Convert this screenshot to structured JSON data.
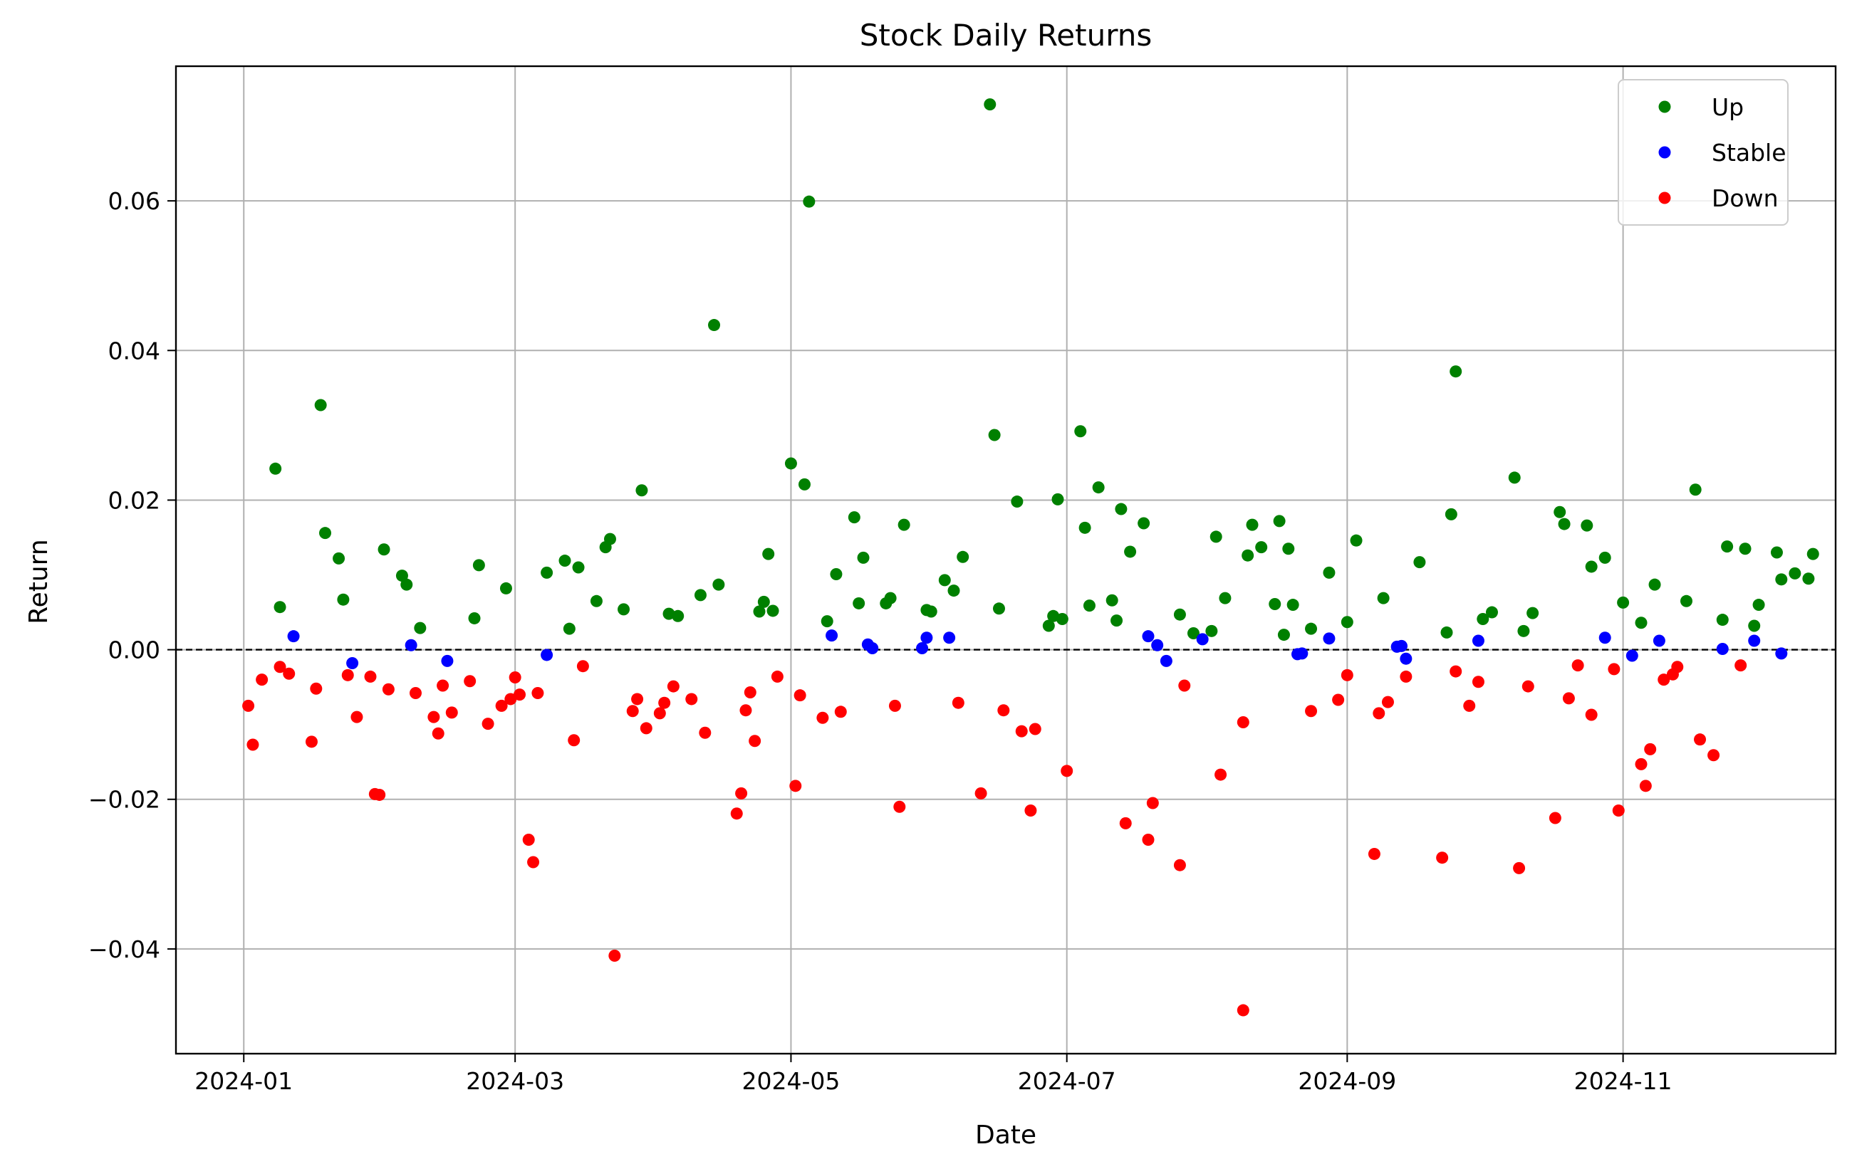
{
  "chart_data": {
    "type": "scatter",
    "title": "Stock Daily Returns",
    "xlabel": "Date",
    "ylabel": "Return",
    "x_axis_type": "date",
    "xlim": [
      "2023-12-17",
      "2024-12-18"
    ],
    "ylim": [
      -0.054,
      0.078
    ],
    "x_ticks": [
      "2024-01-01",
      "2024-03-01",
      "2024-05-01",
      "2024-07-01",
      "2024-09-01",
      "2024-11-01"
    ],
    "x_tick_labels": [
      "2024-01",
      "2024-03",
      "2024-05",
      "2024-07",
      "2024-09",
      "2024-11"
    ],
    "y_ticks": [
      -0.04,
      -0.02,
      0.0,
      0.02,
      0.04,
      0.06
    ],
    "y_tick_labels": [
      "−0.04",
      "−0.02",
      "0.00",
      "0.02",
      "0.04",
      "0.06"
    ],
    "grid": true,
    "reference_line": {
      "y": 0.0,
      "style": "dashed",
      "color": "#000000"
    },
    "legend": {
      "position": "top-right",
      "entries": [
        "Up",
        "Stable",
        "Down"
      ]
    },
    "series": [
      {
        "name": "Up",
        "color": "#008000",
        "points": [
          [
            "2024-01-08",
            0.0242
          ],
          [
            "2024-01-09",
            0.0057
          ],
          [
            "2024-01-18",
            0.0327
          ],
          [
            "2024-01-19",
            0.0156
          ],
          [
            "2024-01-22",
            0.0122
          ],
          [
            "2024-01-23",
            0.0067
          ],
          [
            "2024-02-01",
            0.0134
          ],
          [
            "2024-02-05",
            0.0099
          ],
          [
            "2024-02-06",
            0.0087
          ],
          [
            "2024-02-09",
            0.0029
          ],
          [
            "2024-02-21",
            0.0042
          ],
          [
            "2024-02-22",
            0.0113
          ],
          [
            "2024-02-28",
            0.0082
          ],
          [
            "2024-03-08",
            0.0103
          ],
          [
            "2024-03-12",
            0.0119
          ],
          [
            "2024-03-13",
            0.0028
          ],
          [
            "2024-03-15",
            0.011
          ],
          [
            "2024-03-19",
            0.0065
          ],
          [
            "2024-03-21",
            0.0137
          ],
          [
            "2024-03-22",
            0.0148
          ],
          [
            "2024-03-25",
            0.0054
          ],
          [
            "2024-03-29",
            0.0213
          ],
          [
            "2024-04-04",
            0.0048
          ],
          [
            "2024-04-06",
            0.0045
          ],
          [
            "2024-04-11",
            0.0073
          ],
          [
            "2024-04-14",
            0.0434
          ],
          [
            "2024-04-15",
            0.0087
          ],
          [
            "2024-04-24",
            0.0051
          ],
          [
            "2024-04-25",
            0.0064
          ],
          [
            "2024-04-26",
            0.0128
          ],
          [
            "2024-04-27",
            0.0052
          ],
          [
            "2024-05-01",
            0.0249
          ],
          [
            "2024-05-04",
            0.0221
          ],
          [
            "2024-05-05",
            0.0599
          ],
          [
            "2024-05-09",
            0.0038
          ],
          [
            "2024-05-11",
            0.0101
          ],
          [
            "2024-05-15",
            0.0177
          ],
          [
            "2024-05-16",
            0.0062
          ],
          [
            "2024-05-17",
            0.0123
          ],
          [
            "2024-05-22",
            0.0062
          ],
          [
            "2024-05-23",
            0.0069
          ],
          [
            "2024-05-26",
            0.0167
          ],
          [
            "2024-05-31",
            0.0053
          ],
          [
            "2024-06-01",
            0.0051
          ],
          [
            "2024-06-04",
            0.0093
          ],
          [
            "2024-06-06",
            0.0079
          ],
          [
            "2024-06-08",
            0.0124
          ],
          [
            "2024-06-14",
            0.0729
          ],
          [
            "2024-06-15",
            0.0287
          ],
          [
            "2024-06-16",
            0.0055
          ],
          [
            "2024-06-20",
            0.0198
          ],
          [
            "2024-06-27",
            0.0032
          ],
          [
            "2024-06-28",
            0.0045
          ],
          [
            "2024-06-29",
            0.0201
          ],
          [
            "2024-06-30",
            0.0041
          ],
          [
            "2024-07-04",
            0.0292
          ],
          [
            "2024-07-05",
            0.0163
          ],
          [
            "2024-07-06",
            0.0059
          ],
          [
            "2024-07-08",
            0.0217
          ],
          [
            "2024-07-11",
            0.0066
          ],
          [
            "2024-07-12",
            0.0039
          ],
          [
            "2024-07-13",
            0.0188
          ],
          [
            "2024-07-15",
            0.0131
          ],
          [
            "2024-07-18",
            0.0169
          ],
          [
            "2024-07-26",
            0.0047
          ],
          [
            "2024-07-29",
            0.0022
          ],
          [
            "2024-08-02",
            0.0025
          ],
          [
            "2024-08-03",
            0.0151
          ],
          [
            "2024-08-05",
            0.0069
          ],
          [
            "2024-08-10",
            0.0126
          ],
          [
            "2024-08-11",
            0.0167
          ],
          [
            "2024-08-13",
            0.0137
          ],
          [
            "2024-08-16",
            0.0061
          ],
          [
            "2024-08-17",
            0.0172
          ],
          [
            "2024-08-18",
            0.002
          ],
          [
            "2024-08-19",
            0.0135
          ],
          [
            "2024-08-20",
            0.006
          ],
          [
            "2024-08-24",
            0.0028
          ],
          [
            "2024-08-28",
            0.0103
          ],
          [
            "2024-09-01",
            0.0037
          ],
          [
            "2024-09-03",
            0.0146
          ],
          [
            "2024-09-09",
            0.0069
          ],
          [
            "2024-09-17",
            0.0117
          ],
          [
            "2024-09-23",
            0.0023
          ],
          [
            "2024-09-24",
            0.0181
          ],
          [
            "2024-09-25",
            0.0372
          ],
          [
            "2024-10-01",
            0.0041
          ],
          [
            "2024-10-03",
            0.005
          ],
          [
            "2024-10-08",
            0.023
          ],
          [
            "2024-10-10",
            0.0025
          ],
          [
            "2024-10-12",
            0.0049
          ],
          [
            "2024-10-18",
            0.0184
          ],
          [
            "2024-10-19",
            0.0168
          ],
          [
            "2024-10-24",
            0.0166
          ],
          [
            "2024-10-25",
            0.0111
          ],
          [
            "2024-10-28",
            0.0123
          ],
          [
            "2024-11-01",
            0.0063
          ],
          [
            "2024-11-05",
            0.0036
          ],
          [
            "2024-11-08",
            0.0087
          ],
          [
            "2024-11-15",
            0.0065
          ],
          [
            "2024-11-17",
            0.0214
          ],
          [
            "2024-11-23",
            0.004
          ],
          [
            "2024-11-24",
            0.0138
          ],
          [
            "2024-11-28",
            0.0135
          ],
          [
            "2024-11-30",
            0.0032
          ],
          [
            "2024-12-01",
            0.006
          ],
          [
            "2024-12-05",
            0.013
          ],
          [
            "2024-12-06",
            0.0094
          ],
          [
            "2024-12-09",
            0.0102
          ],
          [
            "2024-12-12",
            0.0095
          ],
          [
            "2024-12-13",
            0.0128
          ]
        ]
      },
      {
        "name": "Stable",
        "color": "#0000ff",
        "points": [
          [
            "2024-01-12",
            0.0018
          ],
          [
            "2024-01-25",
            -0.0018
          ],
          [
            "2024-02-07",
            0.0006
          ],
          [
            "2024-02-15",
            -0.0015
          ],
          [
            "2024-03-08",
            -0.0007
          ],
          [
            "2024-05-10",
            0.0019
          ],
          [
            "2024-05-18",
            0.0007
          ],
          [
            "2024-05-19",
            0.0002
          ],
          [
            "2024-05-30",
            0.0002
          ],
          [
            "2024-05-31",
            0.0016
          ],
          [
            "2024-06-05",
            0.0016
          ],
          [
            "2024-07-19",
            0.0018
          ],
          [
            "2024-07-21",
            0.0006
          ],
          [
            "2024-07-23",
            -0.0015
          ],
          [
            "2024-07-31",
            0.0014
          ],
          [
            "2024-08-21",
            -0.0006
          ],
          [
            "2024-08-22",
            -0.0005
          ],
          [
            "2024-08-28",
            0.0015
          ],
          [
            "2024-09-12",
            0.0004
          ],
          [
            "2024-09-13",
            0.0005
          ],
          [
            "2024-09-14",
            -0.0012
          ],
          [
            "2024-09-30",
            0.0012
          ],
          [
            "2024-10-28",
            0.0016
          ],
          [
            "2024-11-03",
            -0.0008
          ],
          [
            "2024-11-09",
            0.0012
          ],
          [
            "2024-11-23",
            0.0001
          ],
          [
            "2024-11-30",
            0.0012
          ],
          [
            "2024-12-06",
            -0.0005
          ]
        ]
      },
      {
        "name": "Down",
        "color": "#ff0000",
        "points": [
          [
            "2024-01-02",
            -0.0075
          ],
          [
            "2024-01-03",
            -0.0127
          ],
          [
            "2024-01-05",
            -0.004
          ],
          [
            "2024-01-09",
            -0.0023
          ],
          [
            "2024-01-11",
            -0.0032
          ],
          [
            "2024-01-16",
            -0.0123
          ],
          [
            "2024-01-17",
            -0.0052
          ],
          [
            "2024-01-24",
            -0.0034
          ],
          [
            "2024-01-26",
            -0.009
          ],
          [
            "2024-01-29",
            -0.0036
          ],
          [
            "2024-01-30",
            -0.0193
          ],
          [
            "2024-01-31",
            -0.0194
          ],
          [
            "2024-02-02",
            -0.0053
          ],
          [
            "2024-02-08",
            -0.0058
          ],
          [
            "2024-02-12",
            -0.009
          ],
          [
            "2024-02-13",
            -0.0112
          ],
          [
            "2024-02-14",
            -0.0048
          ],
          [
            "2024-02-16",
            -0.0084
          ],
          [
            "2024-02-20",
            -0.0042
          ],
          [
            "2024-02-24",
            -0.0099
          ],
          [
            "2024-02-27",
            -0.0075
          ],
          [
            "2024-02-29",
            -0.0066
          ],
          [
            "2024-03-01",
            -0.0037
          ],
          [
            "2024-03-02",
            -0.006
          ],
          [
            "2024-03-04",
            -0.0254
          ],
          [
            "2024-03-05",
            -0.0284
          ],
          [
            "2024-03-06",
            -0.0058
          ],
          [
            "2024-03-14",
            -0.0121
          ],
          [
            "2024-03-16",
            -0.0022
          ],
          [
            "2024-03-23",
            -0.0409
          ],
          [
            "2024-03-27",
            -0.0082
          ],
          [
            "2024-03-28",
            -0.0066
          ],
          [
            "2024-03-30",
            -0.0105
          ],
          [
            "2024-04-02",
            -0.0085
          ],
          [
            "2024-04-03",
            -0.0071
          ],
          [
            "2024-04-05",
            -0.0049
          ],
          [
            "2024-04-09",
            -0.0066
          ],
          [
            "2024-04-12",
            -0.0111
          ],
          [
            "2024-04-19",
            -0.0219
          ],
          [
            "2024-04-20",
            -0.0192
          ],
          [
            "2024-04-21",
            -0.0081
          ],
          [
            "2024-04-22",
            -0.0057
          ],
          [
            "2024-04-23",
            -0.0122
          ],
          [
            "2024-04-28",
            -0.0036
          ],
          [
            "2024-05-02",
            -0.0182
          ],
          [
            "2024-05-03",
            -0.0061
          ],
          [
            "2024-05-08",
            -0.0091
          ],
          [
            "2024-05-12",
            -0.0083
          ],
          [
            "2024-05-24",
            -0.0075
          ],
          [
            "2024-05-25",
            -0.021
          ],
          [
            "2024-06-07",
            -0.0071
          ],
          [
            "2024-06-12",
            -0.0192
          ],
          [
            "2024-06-17",
            -0.0081
          ],
          [
            "2024-06-21",
            -0.0109
          ],
          [
            "2024-06-23",
            -0.0215
          ],
          [
            "2024-06-24",
            -0.0106
          ],
          [
            "2024-07-01",
            -0.0162
          ],
          [
            "2024-07-14",
            -0.0232
          ],
          [
            "2024-07-19",
            -0.0254
          ],
          [
            "2024-07-20",
            -0.0205
          ],
          [
            "2024-07-26",
            -0.0288
          ],
          [
            "2024-07-27",
            -0.0048
          ],
          [
            "2024-08-04",
            -0.0167
          ],
          [
            "2024-08-09",
            -0.0482
          ],
          [
            "2024-08-09",
            -0.0097
          ],
          [
            "2024-08-24",
            -0.0082
          ],
          [
            "2024-08-30",
            -0.0067
          ],
          [
            "2024-09-01",
            -0.0034
          ],
          [
            "2024-09-07",
            -0.0273
          ],
          [
            "2024-09-08",
            -0.0085
          ],
          [
            "2024-09-10",
            -0.007
          ],
          [
            "2024-09-14",
            -0.0036
          ],
          [
            "2024-09-22",
            -0.0278
          ],
          [
            "2024-09-25",
            -0.0029
          ],
          [
            "2024-09-28",
            -0.0075
          ],
          [
            "2024-09-30",
            -0.0043
          ],
          [
            "2024-10-09",
            -0.0292
          ],
          [
            "2024-10-11",
            -0.0049
          ],
          [
            "2024-10-17",
            -0.0225
          ],
          [
            "2024-10-20",
            -0.0065
          ],
          [
            "2024-10-22",
            -0.0021
          ],
          [
            "2024-10-25",
            -0.0087
          ],
          [
            "2024-10-30",
            -0.0026
          ],
          [
            "2024-10-31",
            -0.0215
          ],
          [
            "2024-11-05",
            -0.0153
          ],
          [
            "2024-11-06",
            -0.0182
          ],
          [
            "2024-11-07",
            -0.0133
          ],
          [
            "2024-11-10",
            -0.004
          ],
          [
            "2024-11-12",
            -0.0033
          ],
          [
            "2024-11-13",
            -0.0023
          ],
          [
            "2024-11-18",
            -0.012
          ],
          [
            "2024-11-21",
            -0.0141
          ],
          [
            "2024-11-27",
            -0.0021
          ]
        ]
      }
    ]
  }
}
